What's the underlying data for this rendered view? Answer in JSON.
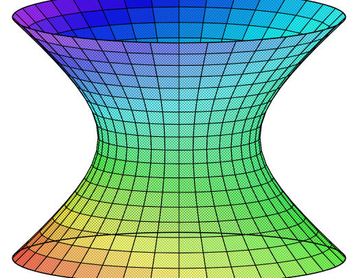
{
  "figure": {
    "subject": "hyperboloid-of-one-sheet",
    "palette": {
      "background": "#ffffff",
      "mesh_line": "#000000",
      "hue_start": 0,
      "hue_end": 330
    }
  }
}
